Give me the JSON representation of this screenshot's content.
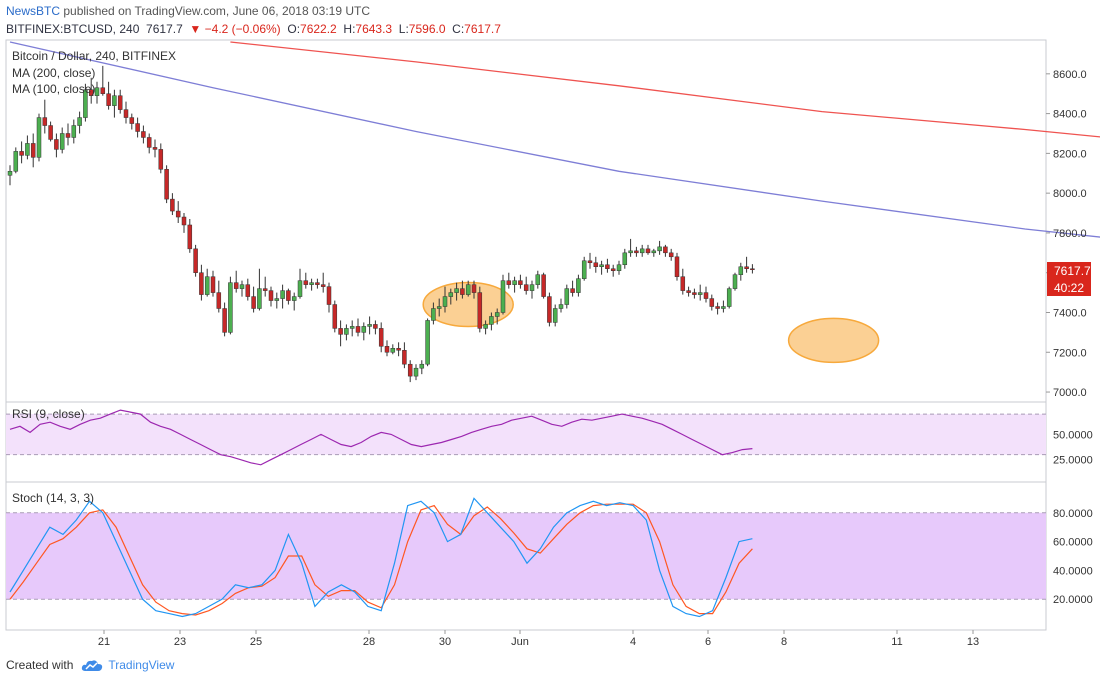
{
  "header": {
    "publisher": "NewsBTC",
    "published_text": "published on TradingView.com, June 06, 2018 03:19 UTC",
    "symbol": "BITFINEX:BTCUSD, 240",
    "last": "7617.7",
    "change": "▼ −4.2 (−0.06%)",
    "o_label": "O:",
    "o_value": "7622.2",
    "h_label": "H:",
    "h_value": "7643.3",
    "l_label": "L:",
    "l_value": "7596.0",
    "c_label": "C:",
    "c_value": "7617.7"
  },
  "legend": {
    "title": "Bitcoin / Dollar, 240, BITFINEX",
    "ma200": "MA (200, close)",
    "ma100": "MA (100, close)",
    "rsi": "RSI (9, close)",
    "stoch": "Stoch (14, 3, 3)"
  },
  "price_badge": {
    "value": "7617.7",
    "timer": "40:22"
  },
  "footer": {
    "created_with": "Created with",
    "brand": "TradingView"
  },
  "colors": {
    "up": "#4caf50",
    "down": "#c62828",
    "ma200": "#ef5350",
    "ma100": "#7e7ed6",
    "rsi_line": "#9c27b0",
    "rsi_band": "#f3e1fb",
    "stoch_band": "#e7c9fb",
    "stoch_k": "#2196f3",
    "stoch_d": "#ff5722",
    "highlight": "#f7a93c",
    "badge": "#d9261c"
  },
  "chart_data": [
    {
      "type": "candlestick",
      "title": "Bitcoin / Dollar, 240, BITFINEX",
      "x_ticks": [
        "21",
        "23",
        "25",
        "28",
        "30",
        "Jun",
        "4",
        "6",
        "8",
        "11",
        "13"
      ],
      "y_ticks": [
        "8600.0",
        "8400.0",
        "8200.0",
        "8000.0",
        "7800.0",
        "7600.0",
        "7400.0",
        "7200.0",
        "7000.0"
      ],
      "ylim": [
        6960,
        8760
      ],
      "candles": [
        [
          8090,
          8140,
          8040,
          8110
        ],
        [
          8110,
          8230,
          8100,
          8210
        ],
        [
          8210,
          8260,
          8150,
          8190
        ],
        [
          8190,
          8290,
          8170,
          8250
        ],
        [
          8250,
          8300,
          8130,
          8180
        ],
        [
          8180,
          8400,
          8160,
          8380
        ],
        [
          8380,
          8470,
          8300,
          8340
        ],
        [
          8340,
          8360,
          8260,
          8270
        ],
        [
          8270,
          8300,
          8180,
          8220
        ],
        [
          8220,
          8330,
          8200,
          8300
        ],
        [
          8300,
          8350,
          8240,
          8280
        ],
        [
          8280,
          8370,
          8250,
          8340
        ],
        [
          8340,
          8410,
          8300,
          8380
        ],
        [
          8380,
          8550,
          8360,
          8520
        ],
        [
          8520,
          8580,
          8450,
          8490
        ],
        [
          8490,
          8560,
          8450,
          8530
        ],
        [
          8530,
          8640,
          8490,
          8500
        ],
        [
          8500,
          8560,
          8420,
          8440
        ],
        [
          8440,
          8520,
          8380,
          8490
        ],
        [
          8490,
          8520,
          8400,
          8420
        ],
        [
          8420,
          8460,
          8350,
          8380
        ],
        [
          8380,
          8400,
          8320,
          8350
        ],
        [
          8350,
          8380,
          8280,
          8310
        ],
        [
          8310,
          8340,
          8250,
          8280
        ],
        [
          8280,
          8300,
          8200,
          8230
        ],
        [
          8230,
          8270,
          8180,
          8220
        ],
        [
          8220,
          8250,
          8100,
          8120
        ],
        [
          8120,
          8140,
          7950,
          7970
        ],
        [
          7970,
          8000,
          7890,
          7910
        ],
        [
          7910,
          7960,
          7850,
          7880
        ],
        [
          7880,
          7900,
          7800,
          7840
        ],
        [
          7840,
          7870,
          7700,
          7720
        ],
        [
          7720,
          7740,
          7580,
          7600
        ],
        [
          7600,
          7640,
          7460,
          7490
        ],
        [
          7490,
          7620,
          7480,
          7580
        ],
        [
          7580,
          7610,
          7480,
          7500
        ],
        [
          7500,
          7560,
          7400,
          7420
        ],
        [
          7420,
          7450,
          7280,
          7300
        ],
        [
          7300,
          7580,
          7290,
          7550
        ],
        [
          7550,
          7610,
          7500,
          7520
        ],
        [
          7520,
          7560,
          7480,
          7540
        ],
        [
          7540,
          7570,
          7460,
          7480
        ],
        [
          7480,
          7530,
          7400,
          7420
        ],
        [
          7420,
          7620,
          7410,
          7520
        ],
        [
          7520,
          7580,
          7480,
          7510
        ],
        [
          7510,
          7530,
          7430,
          7460
        ],
        [
          7460,
          7500,
          7420,
          7470
        ],
        [
          7470,
          7540,
          7420,
          7510
        ],
        [
          7510,
          7520,
          7440,
          7460
        ],
        [
          7460,
          7500,
          7410,
          7480
        ],
        [
          7480,
          7620,
          7470,
          7560
        ],
        [
          7560,
          7600,
          7520,
          7540
        ],
        [
          7540,
          7570,
          7510,
          7550
        ],
        [
          7550,
          7570,
          7520,
          7540
        ],
        [
          7540,
          7600,
          7500,
          7530
        ],
        [
          7530,
          7550,
          7400,
          7440
        ],
        [
          7440,
          7460,
          7300,
          7320
        ],
        [
          7320,
          7360,
          7230,
          7290
        ],
        [
          7290,
          7340,
          7260,
          7320
        ],
        [
          7320,
          7360,
          7280,
          7330
        ],
        [
          7330,
          7370,
          7280,
          7300
        ],
        [
          7300,
          7350,
          7260,
          7330
        ],
        [
          7330,
          7380,
          7290,
          7340
        ],
        [
          7340,
          7360,
          7290,
          7320
        ],
        [
          7320,
          7350,
          7200,
          7230
        ],
        [
          7230,
          7260,
          7180,
          7200
        ],
        [
          7200,
          7240,
          7190,
          7220
        ],
        [
          7220,
          7250,
          7180,
          7210
        ],
        [
          7210,
          7250,
          7120,
          7140
        ],
        [
          7140,
          7160,
          7050,
          7080
        ],
        [
          7080,
          7140,
          7060,
          7120
        ],
        [
          7120,
          7160,
          7090,
          7140
        ],
        [
          7140,
          7370,
          7130,
          7360
        ],
        [
          7360,
          7450,
          7340,
          7420
        ],
        [
          7420,
          7470,
          7380,
          7430
        ],
        [
          7430,
          7530,
          7400,
          7480
        ],
        [
          7480,
          7520,
          7440,
          7500
        ],
        [
          7500,
          7550,
          7460,
          7520
        ],
        [
          7520,
          7560,
          7470,
          7490
        ],
        [
          7490,
          7560,
          7480,
          7540
        ],
        [
          7540,
          7560,
          7470,
          7500
        ],
        [
          7500,
          7530,
          7300,
          7320
        ],
        [
          7320,
          7360,
          7290,
          7340
        ],
        [
          7340,
          7400,
          7310,
          7380
        ],
        [
          7380,
          7420,
          7340,
          7400
        ],
        [
          7400,
          7590,
          7390,
          7560
        ],
        [
          7560,
          7600,
          7520,
          7540
        ],
        [
          7540,
          7580,
          7500,
          7560
        ],
        [
          7560,
          7590,
          7520,
          7540
        ],
        [
          7540,
          7580,
          7490,
          7510
        ],
        [
          7510,
          7560,
          7470,
          7540
        ],
        [
          7540,
          7610,
          7520,
          7590
        ],
        [
          7590,
          7600,
          7470,
          7480
        ],
        [
          7480,
          7500,
          7330,
          7350
        ],
        [
          7350,
          7440,
          7330,
          7420
        ],
        [
          7420,
          7470,
          7400,
          7440
        ],
        [
          7440,
          7540,
          7420,
          7520
        ],
        [
          7520,
          7560,
          7480,
          7500
        ],
        [
          7500,
          7590,
          7480,
          7570
        ],
        [
          7570,
          7680,
          7560,
          7660
        ],
        [
          7660,
          7700,
          7620,
          7650
        ],
        [
          7650,
          7680,
          7600,
          7630
        ],
        [
          7630,
          7660,
          7590,
          7640
        ],
        [
          7640,
          7670,
          7600,
          7620
        ],
        [
          7620,
          7640,
          7580,
          7610
        ],
        [
          7610,
          7660,
          7590,
          7640
        ],
        [
          7640,
          7720,
          7620,
          7700
        ],
        [
          7700,
          7770,
          7680,
          7710
        ],
        [
          7710,
          7730,
          7680,
          7700
        ],
        [
          7700,
          7740,
          7680,
          7720
        ],
        [
          7720,
          7740,
          7690,
          7700
        ],
        [
          7700,
          7720,
          7680,
          7710
        ],
        [
          7710,
          7760,
          7690,
          7730
        ],
        [
          7730,
          7740,
          7680,
          7700
        ],
        [
          7700,
          7720,
          7660,
          7680
        ],
        [
          7680,
          7700,
          7560,
          7580
        ],
        [
          7580,
          7620,
          7490,
          7510
        ],
        [
          7510,
          7530,
          7480,
          7500
        ],
        [
          7500,
          7520,
          7470,
          7490
        ],
        [
          7490,
          7540,
          7460,
          7500
        ],
        [
          7500,
          7530,
          7450,
          7470
        ],
        [
          7470,
          7490,
          7410,
          7430
        ],
        [
          7430,
          7450,
          7390,
          7420
        ],
        [
          7420,
          7460,
          7400,
          7430
        ],
        [
          7430,
          7530,
          7420,
          7520
        ],
        [
          7520,
          7600,
          7510,
          7590
        ],
        [
          7590,
          7650,
          7560,
          7630
        ],
        [
          7630,
          7680,
          7600,
          7620
        ],
        [
          7620,
          7643,
          7596,
          7618
        ]
      ],
      "ma100": [
        [
          0,
          8760
        ],
        [
          35,
          8530
        ],
        [
          70,
          8310
        ],
        [
          105,
          8110
        ],
        [
          140,
          7960
        ],
        [
          175,
          7820
        ],
        [
          210,
          7710
        ],
        [
          245,
          7620
        ]
      ],
      "ma200": [
        [
          38,
          8760
        ],
        [
          70,
          8660
        ],
        [
          105,
          8540
        ],
        [
          140,
          8410
        ],
        [
          175,
          8320
        ],
        [
          210,
          8220
        ],
        [
          245,
          8090
        ]
      ],
      "highlight_zones": [
        [
          79,
          7440
        ],
        [
          142,
          7260
        ],
        [
          241,
          7430
        ]
      ]
    },
    {
      "type": "line",
      "title": "RSI (9, close)",
      "y_ticks": [
        "50.0000",
        "25.0000"
      ],
      "ylim": [
        5,
        80
      ],
      "band": [
        30,
        70
      ],
      "values": [
        55,
        58,
        52,
        60,
        62,
        58,
        55,
        60,
        64,
        66,
        70,
        74,
        72,
        70,
        62,
        58,
        55,
        50,
        45,
        40,
        35,
        30,
        28,
        25,
        22,
        20,
        25,
        30,
        35,
        40,
        45,
        50,
        45,
        40,
        38,
        42,
        48,
        52,
        50,
        45,
        40,
        38,
        40,
        42,
        45,
        48,
        52,
        55,
        58,
        60,
        64,
        66,
        68,
        64,
        60,
        58,
        62,
        65,
        64,
        66,
        68,
        70,
        68,
        66,
        63,
        60,
        55,
        50,
        45,
        40,
        35,
        30,
        32,
        35,
        36
      ]
    },
    {
      "type": "line",
      "title": "Stoch (14, 3, 3)",
      "y_ticks": [
        "80.0000",
        "60.0000",
        "40.0000",
        "20.0000"
      ],
      "ylim": [
        0,
        100
      ],
      "band": [
        20,
        80
      ],
      "k": [
        25,
        40,
        55,
        70,
        65,
        75,
        88,
        80,
        60,
        40,
        20,
        12,
        10,
        8,
        10,
        15,
        20,
        30,
        28,
        30,
        40,
        65,
        45,
        15,
        25,
        30,
        25,
        15,
        12,
        45,
        85,
        88,
        80,
        60,
        65,
        90,
        80,
        70,
        60,
        45,
        55,
        70,
        80,
        85,
        88,
        85,
        87,
        85,
        75,
        40,
        15,
        10,
        8,
        12,
        35,
        60,
        62
      ],
      "d": [
        20,
        32,
        45,
        58,
        62,
        70,
        80,
        82,
        70,
        50,
        30,
        18,
        12,
        10,
        9,
        12,
        17,
        24,
        28,
        29,
        35,
        50,
        50,
        30,
        22,
        26,
        26,
        18,
        14,
        30,
        60,
        82,
        85,
        72,
        65,
        78,
        84,
        76,
        66,
        55,
        52,
        62,
        72,
        80,
        85,
        86,
        86,
        86,
        80,
        60,
        30,
        15,
        10,
        10,
        25,
        45,
        55
      ]
    }
  ]
}
